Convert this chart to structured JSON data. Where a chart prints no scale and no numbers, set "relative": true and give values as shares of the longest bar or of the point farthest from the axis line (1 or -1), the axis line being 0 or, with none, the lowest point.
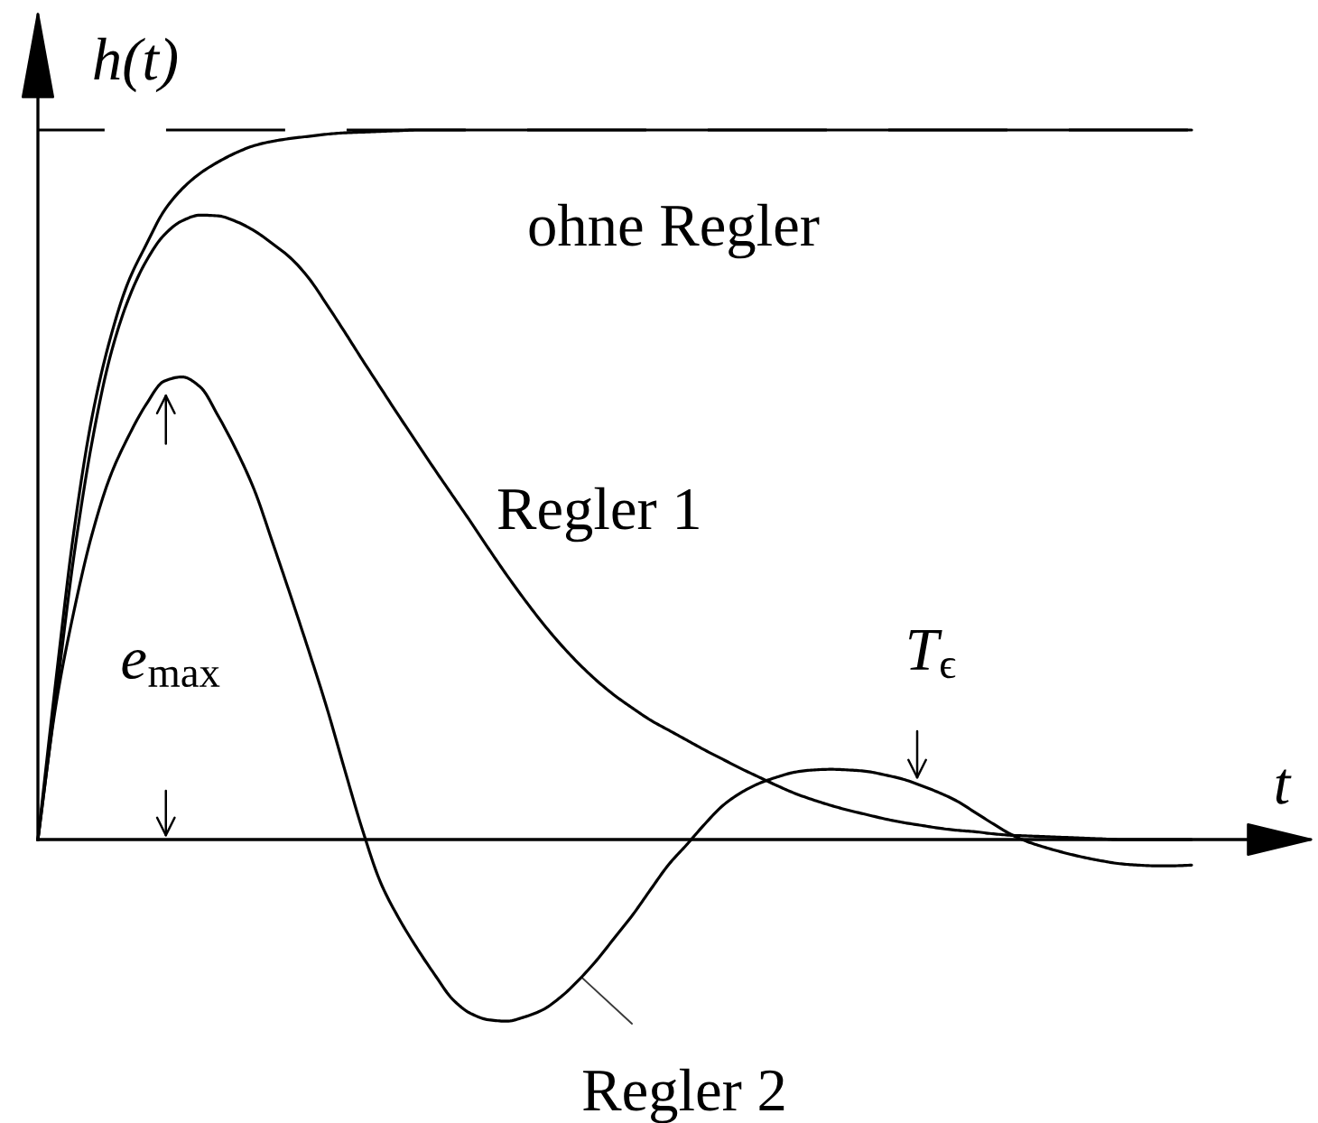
{
  "chart_data": {
    "type": "line",
    "relative": true,
    "xlabel": "t",
    "ylabel": "h(t)",
    "tick_labels": false,
    "categories": [
      null,
      null,
      null,
      null,
      null,
      null,
      null,
      null,
      null,
      null,
      null,
      null,
      null,
      null,
      null,
      null,
      null,
      null,
      null,
      null,
      null,
      null,
      null,
      null,
      null,
      null,
      null,
      null,
      null,
      null,
      null,
      null,
      null,
      null,
      null,
      null,
      null,
      null,
      null,
      null,
      null,
      null,
      null,
      null,
      null,
      null,
      null,
      null,
      null,
      null,
      null,
      null,
      null,
      null,
      null,
      null,
      null,
      null,
      null,
      null,
      null,
      null,
      null,
      null,
      null
    ],
    "series": [
      {
        "name": "ohne Regler",
        "color": "#000000",
        "values": [
          0,
          0.225,
          0.435,
          0.595,
          0.705,
          0.785,
          0.838,
          0.886,
          0.917,
          0.939,
          0.955,
          0.968,
          0.978,
          0.984,
          0.988,
          0.991,
          0.994,
          0.996,
          0.997,
          0.998,
          0.999,
          1,
          1,
          1,
          1,
          1,
          1,
          1,
          1,
          1,
          1,
          1,
          1,
          1,
          1,
          1,
          1,
          1,
          1,
          1,
          1,
          1,
          1,
          1,
          1,
          1,
          1,
          1,
          1,
          1,
          1,
          1,
          1,
          1,
          1,
          1,
          1,
          1,
          1,
          1,
          1,
          1,
          1,
          1,
          1
        ]
      },
      {
        "name": "Regler 1",
        "color": "#000000",
        "values": [
          0,
          0.2,
          0.4,
          0.56,
          0.68,
          0.76,
          0.815,
          0.852,
          0.872,
          0.88,
          0.879,
          0.871,
          0.858,
          0.84,
          0.82,
          0.792,
          0.755,
          0.716,
          0.676,
          0.637,
          0.598,
          0.56,
          0.522,
          0.485,
          0.448,
          0.41,
          0.373,
          0.338,
          0.305,
          0.275,
          0.248,
          0.224,
          0.203,
          0.185,
          0.168,
          0.154,
          0.14,
          0.126,
          0.113,
          0.1,
          0.088,
          0.076,
          0.065,
          0.056,
          0.048,
          0.041,
          0.035,
          0.029,
          0.024,
          0.02,
          0.016,
          0.013,
          0.011,
          0.008,
          0.006,
          0.005,
          0.004,
          0.003,
          0.002,
          0.001,
          0,
          0,
          0,
          0,
          0
        ]
      },
      {
        "name": "Regler 2",
        "color": "#000000",
        "values": [
          0,
          0.19,
          0.322,
          0.43,
          0.511,
          0.567,
          0.613,
          0.646,
          0.652,
          0.638,
          0.597,
          0.549,
          0.493,
          0.42,
          0.345,
          0.268,
          0.188,
          0.1,
          0.014,
          -0.06,
          -0.11,
          -0.152,
          -0.19,
          -0.225,
          -0.245,
          -0.254,
          -0.256,
          -0.25,
          -0.24,
          -0.222,
          -0.198,
          -0.17,
          -0.138,
          -0.106,
          -0.07,
          -0.035,
          -0.007,
          0.022,
          0.048,
          0.066,
          0.079,
          0.088,
          0.095,
          0.098,
          0.099,
          0.098,
          0.096,
          0.091,
          0.085,
          0.076,
          0.066,
          0.054,
          0.038,
          0.022,
          0.007,
          -0.004,
          -0.012,
          -0.019,
          -0.025,
          -0.03,
          -0.034,
          -0.036,
          -0.037,
          -0.037,
          -0.036
        ]
      }
    ],
    "ref_lines": [
      {
        "axis": "y",
        "value": 1,
        "line_style": "dashed",
        "color": "#000000"
      }
    ],
    "annotations": [
      "e$_{max}$",
      "T$_{ϵ}$"
    ]
  }
}
